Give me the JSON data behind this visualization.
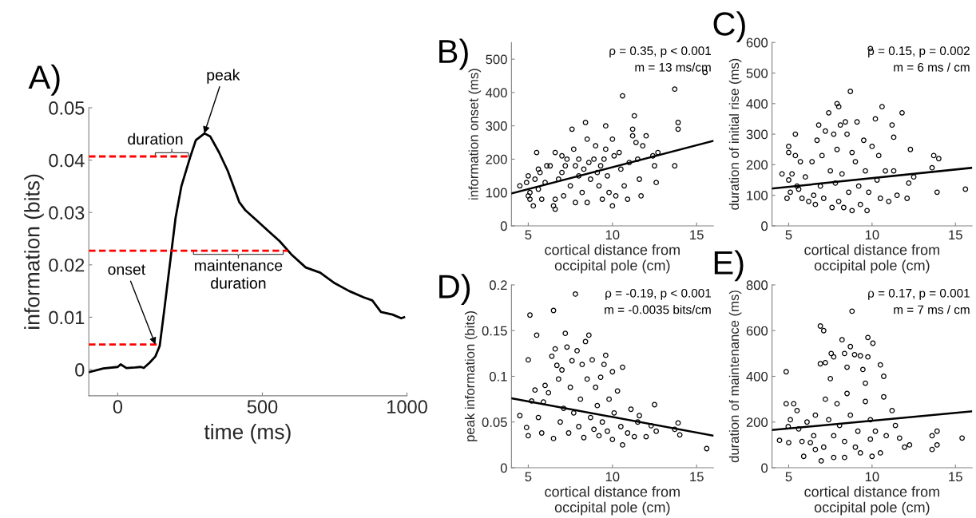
{
  "chart_data": [
    {
      "type": "line",
      "title": "A)",
      "xlabel": "time (ms)",
      "ylabel": "information (bits)",
      "xlim": [
        -100,
        1000
      ],
      "xticks": [
        0,
        500,
        1000
      ],
      "ylim": [
        -0.005,
        0.05
      ],
      "yticks": [
        0,
        0.01,
        0.02,
        0.03,
        0.04,
        0.05
      ],
      "series": [
        {
          "color": "#000000",
          "line_style": "solid",
          "x": [
            -100,
            -50,
            0,
            10,
            30,
            60,
            80,
            90,
            110,
            130,
            145,
            160,
            180,
            200,
            220,
            250,
            270,
            300,
            320,
            350,
            380,
            420,
            440,
            480,
            520,
            560,
            600,
            650,
            700,
            750,
            800,
            850,
            880,
            910,
            950,
            980,
            990
          ],
          "values": [
            -0.0005,
            0.0002,
            0.0005,
            0.001,
            0.0003,
            0.0004,
            0.0005,
            0.0003,
            0.0013,
            0.0025,
            0.0045,
            0.011,
            0.02,
            0.029,
            0.035,
            0.0405,
            0.0438,
            0.0451,
            0.0445,
            0.0415,
            0.038,
            0.032,
            0.0305,
            0.0285,
            0.0265,
            0.0245,
            0.022,
            0.0195,
            0.0185,
            0.0165,
            0.015,
            0.0138,
            0.0132,
            0.011,
            0.0105,
            0.0098,
            0.01
          ]
        },
        {
          "color": "#ff0000",
          "line_style": "dashed",
          "x": [
            -100,
            140
          ],
          "values": [
            0.0048,
            0.0048
          ]
        },
        {
          "color": "#ff0000",
          "line_style": "dashed",
          "x": [
            -100,
            588
          ],
          "values": [
            0.0227,
            0.0227
          ]
        },
        {
          "color": "#ff0000",
          "line_style": "dashed",
          "x": [
            -100,
            245
          ],
          "values": [
            0.0407,
            0.0407
          ]
        }
      ],
      "annotations": [
        {
          "text": "peak",
          "x": 299,
          "y": 0.0451
        },
        {
          "text": "onset",
          "x": 130,
          "y": 0.0048
        },
        {
          "text": "duration",
          "x": 187,
          "y": 0.0407
        },
        {
          "text": "maintenance\nduration",
          "x": 417,
          "y": 0.0227
        }
      ]
    },
    {
      "type": "scatter",
      "title": "B)",
      "xlabel": "cortical distance from\noccipital pole (cm)",
      "ylabel": "information onset (ms)",
      "xlim": [
        4,
        16
      ],
      "xticks": [
        5,
        10,
        15
      ],
      "ylim": [
        0,
        550
      ],
      "yticks": [
        0,
        100,
        200,
        300,
        400,
        500
      ],
      "series": [
        {
          "marker": "circle",
          "color": "#000000",
          "x": [
            4.5,
            4.9,
            5.0,
            5.0,
            5.1,
            5.1,
            5.3,
            5.4,
            5.5,
            5.6,
            5.6,
            5.7,
            5.8,
            6.0,
            6.1,
            6.3,
            6.5,
            6.6,
            6.6,
            6.6,
            6.8,
            7.0,
            7.0,
            7.1,
            7.2,
            7.3,
            7.5,
            7.6,
            7.7,
            7.8,
            7.8,
            8.0,
            8.0,
            8.2,
            8.3,
            8.4,
            8.5,
            8.5,
            8.6,
            8.7,
            8.9,
            9.0,
            9.1,
            9.2,
            9.3,
            9.4,
            9.5,
            9.6,
            9.6,
            9.7,
            9.8,
            10.0,
            10.0,
            10.1,
            10.2,
            10.4,
            10.5,
            10.6,
            10.7,
            10.9,
            11.0,
            11.2,
            11.3,
            11.2,
            11.4,
            11.5,
            11.6,
            11.7,
            11.8,
            12.0,
            12.4,
            12.5,
            12.6,
            12.7,
            13.7,
            13.7,
            13.9,
            13.9,
            15.5
          ],
          "values": [
            120,
            130,
            150,
            90,
            80,
            100,
            60,
            140,
            220,
            170,
            110,
            160,
            80,
            130,
            180,
            180,
            60,
            50,
            220,
            80,
            140,
            210,
            160,
            90,
            180,
            200,
            120,
            290,
            230,
            70,
            180,
            150,
            200,
            100,
            170,
            310,
            260,
            70,
            190,
            140,
            200,
            240,
            160,
            120,
            180,
            80,
            200,
            300,
            230,
            150,
            100,
            260,
            60,
            210,
            90,
            220,
            170,
            390,
            120,
            80,
            190,
            290,
            330,
            270,
            250,
            200,
            140,
            90,
            240,
            270,
            210,
            180,
            130,
            220,
            410,
            180,
            310,
            290,
            460
          ]
        },
        {
          "type": "line",
          "color": "#000000",
          "x": [
            4,
            16
          ],
          "values": [
            97,
            255
          ]
        }
      ],
      "annotations": [
        "ρ = 0.35, p < 0.001",
        "m = 13 ms/cm"
      ]
    },
    {
      "type": "scatter",
      "title": "C)",
      "xlabel": "cortical distance from\noccipital pole (cm)",
      "ylabel": "duration of initial rise (ms)",
      "xlim": [
        4,
        16
      ],
      "xticks": [
        5,
        10,
        15
      ],
      "ylim": [
        0,
        600
      ],
      "yticks": [
        0,
        100,
        200,
        300,
        400,
        500,
        600
      ],
      "series": [
        {
          "marker": "circle",
          "color": "#000000",
          "x": [
            4.6,
            4.9,
            5.0,
            5.0,
            5.0,
            5.1,
            5.2,
            5.4,
            5.4,
            5.5,
            5.6,
            5.7,
            5.8,
            6.0,
            6.2,
            6.4,
            6.5,
            6.6,
            6.7,
            6.8,
            6.9,
            7.0,
            7.1,
            7.2,
            7.4,
            7.5,
            7.6,
            7.7,
            7.8,
            7.9,
            8.0,
            7.9,
            8.0,
            8.1,
            8.2,
            8.3,
            8.4,
            8.5,
            8.6,
            8.7,
            8.8,
            8.8,
            9.0,
            9.1,
            9.2,
            9.3,
            9.5,
            9.6,
            9.7,
            9.8,
            9.9,
            10.0,
            10.2,
            10.3,
            10.4,
            10.5,
            10.6,
            10.8,
            11.0,
            11.2,
            11.3,
            11.3,
            11.5,
            11.8,
            12.1,
            12.2,
            12.3,
            12.5,
            13.6,
            13.7,
            13.9,
            14.0,
            15.6
          ],
          "values": [
            170,
            90,
            260,
            240,
            150,
            110,
            170,
            300,
            230,
            130,
            120,
            210,
            90,
            160,
            80,
            210,
            100,
            70,
            280,
            330,
            130,
            230,
            90,
            310,
            370,
            180,
            60,
            300,
            140,
            400,
            390,
            250,
            80,
            330,
            170,
            60,
            340,
            300,
            110,
            440,
            50,
            240,
            210,
            340,
            130,
            70,
            280,
            180,
            50,
            110,
            580,
            260,
            350,
            150,
            230,
            90,
            390,
            180,
            80,
            330,
            290,
            180,
            100,
            370,
            90,
            140,
            250,
            160,
            190,
            230,
            110,
            220,
            120
          ]
        },
        {
          "type": "line",
          "color": "#000000",
          "x": [
            4,
            16
          ],
          "values": [
            122,
            190
          ]
        }
      ],
      "annotations": [
        "ρ = 0.15, p = 0.002",
        "m = 6 ms / cm"
      ]
    },
    {
      "type": "scatter",
      "title": "D)",
      "xlabel": "cortical distance from\noccipital pole (cm)",
      "ylabel": "peak information (bits)",
      "xlim": [
        4,
        16
      ],
      "xticks": [
        5,
        10,
        15
      ],
      "ylim": [
        0,
        0.2
      ],
      "yticks": [
        0,
        0.05,
        0.1,
        0.15,
        0.2
      ],
      "series": [
        {
          "marker": "circle",
          "color": "#000000",
          "x": [
            4.5,
            4.9,
            5.0,
            5.0,
            5.1,
            5.2,
            5.4,
            5.5,
            5.6,
            5.8,
            5.9,
            6.0,
            6.2,
            6.4,
            6.5,
            6.5,
            6.6,
            6.7,
            6.8,
            6.9,
            7.0,
            7.1,
            7.2,
            7.3,
            7.4,
            7.5,
            7.6,
            7.7,
            7.8,
            7.9,
            8.0,
            8.1,
            8.2,
            8.3,
            8.4,
            8.5,
            8.6,
            8.7,
            8.8,
            8.9,
            9.0,
            9.1,
            9.2,
            9.3,
            9.4,
            9.5,
            9.6,
            9.7,
            9.8,
            10.0,
            10.0,
            10.1,
            10.3,
            10.5,
            10.6,
            10.6,
            10.9,
            11.1,
            11.3,
            11.5,
            11.6,
            12.0,
            12.3,
            12.5,
            12.6,
            13.7,
            13.9,
            14.0,
            15.6
          ],
          "values": [
            0.057,
            0.044,
            0.035,
            0.118,
            0.167,
            0.073,
            0.085,
            0.145,
            0.055,
            0.038,
            0.072,
            0.09,
            0.082,
            0.122,
            0.172,
            0.032,
            0.13,
            0.112,
            0.097,
            0.05,
            0.107,
            0.065,
            0.147,
            0.132,
            0.038,
            0.088,
            0.117,
            0.06,
            0.19,
            0.128,
            0.045,
            0.075,
            0.113,
            0.033,
            0.138,
            0.097,
            0.145,
            0.055,
            0.118,
            0.042,
            0.088,
            0.068,
            0.035,
            0.099,
            0.05,
            0.113,
            0.123,
            0.04,
            0.075,
            0.031,
            0.105,
            0.06,
            0.084,
            0.045,
            0.025,
            0.11,
            0.038,
            0.064,
            0.034,
            0.05,
            0.057,
            0.034,
            0.046,
            0.069,
            0.04,
            0.042,
            0.049,
            0.036,
            0.021
          ]
        },
        {
          "type": "line",
          "color": "#000000",
          "x": [
            4,
            16
          ],
          "values": [
            0.076,
            0.035
          ]
        }
      ],
      "annotations": [
        "ρ = -0.19, p < 0.001",
        "m = -0.0035 bits/cm"
      ]
    },
    {
      "type": "scatter",
      "title": "E)",
      "xlabel": "cortical distance from\noccipital pole (cm)",
      "ylabel": "duration of maintenance (ms)",
      "xlim": [
        4,
        16
      ],
      "xticks": [
        5,
        10,
        15
      ],
      "ylim": [
        0,
        800
      ],
      "yticks": [
        0,
        200,
        400,
        600,
        800
      ],
      "series": [
        {
          "marker": "circle",
          "color": "#000000",
          "x": [
            4.45,
            4.85,
            4.85,
            4.97,
            5.0,
            5.1,
            5.3,
            5.5,
            5.6,
            5.8,
            5.9,
            6.1,
            6.3,
            6.6,
            6.9,
            7.1,
            6.9,
            7.2,
            6.6,
            7.2,
            7.55,
            7.7,
            7.5,
            7.7,
            6.95,
            8.2,
            8.35,
            8.7,
            8.5,
            8.95,
            9.3,
            9.45,
            9.75,
            10.05,
            9.75,
            10.5,
            10.7,
            10.7,
            10.0,
            11.2,
            11.4,
            11.65,
            11.95,
            12.25,
            13.6,
            13.9,
            13.9,
            13.6,
            15.4,
            8.8,
            8.05,
            8.35,
            8.7,
            9.15,
            9.6,
            9.9,
            9.0,
            7.7,
            7.4,
            9.9,
            9.3,
            10.2,
            10.85,
            9.6,
            7.9,
            8.5,
            8.35,
            10.5,
            6.5,
            7.1
          ],
          "values": [
            120,
            420,
            280,
            180,
            110,
            210,
            280,
            250,
            170,
            115,
            50,
            200,
            110,
            80,
            620,
            600,
            455,
            460,
            230,
            300,
            500,
            485,
            390,
            45,
            30,
            560,
            500,
            530,
            440,
            495,
            490,
            430,
            570,
            545,
            485,
            450,
            400,
            310,
            50,
            250,
            185,
            130,
            90,
            100,
            140,
            160,
            100,
            80,
            130,
            685,
            185,
            115,
            230,
            160,
            290,
            210,
            90,
            140,
            210,
            125,
            65,
            160,
            140,
            370,
            280,
            325,
            45,
            65,
            140,
            90
          ]
        },
        {
          "type": "line",
          "color": "#000000",
          "x": [
            4,
            16
          ],
          "values": [
            165,
            247
          ]
        }
      ],
      "annotations": [
        "ρ = 0.17, p = 0.001",
        "m = 7 ms / cm"
      ]
    }
  ]
}
